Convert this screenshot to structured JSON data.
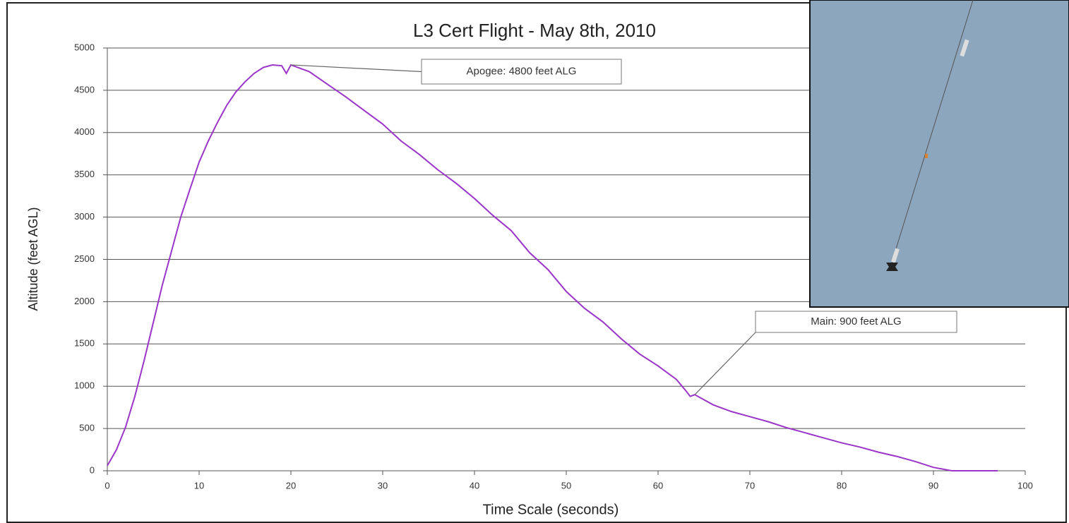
{
  "chart_data": {
    "type": "line",
    "title": "L3 Cert Flight - May 8th, 2010",
    "x_label": "Time Scale (seconds)",
    "y_label": "Altitude (feet AGL)",
    "x": [
      0,
      1,
      2,
      3,
      4,
      5,
      6,
      7,
      8,
      9,
      10,
      11,
      12,
      13,
      14,
      15,
      16,
      17,
      18,
      19,
      19.5,
      20,
      22,
      24,
      26,
      28,
      30,
      32,
      34,
      36,
      38,
      40,
      42,
      44,
      46,
      48,
      50,
      52,
      54,
      56,
      58,
      60,
      62,
      63,
      63.5,
      64,
      66,
      68,
      70,
      72,
      74,
      76,
      78,
      80,
      82,
      84,
      86,
      88,
      90,
      92,
      95,
      97
    ],
    "values": [
      60,
      250,
      520,
      880,
      1300,
      1750,
      2200,
      2600,
      3000,
      3330,
      3650,
      3900,
      4120,
      4320,
      4480,
      4600,
      4700,
      4770,
      4800,
      4790,
      4700,
      4800,
      4720,
      4570,
      4420,
      4260,
      4100,
      3900,
      3740,
      3560,
      3400,
      3220,
      3020,
      2840,
      2580,
      2380,
      2120,
      1920,
      1760,
      1560,
      1380,
      1240,
      1080,
      950,
      880,
      900,
      780,
      700,
      640,
      580,
      510,
      450,
      390,
      330,
      280,
      220,
      170,
      110,
      40,
      0,
      0,
      0
    ],
    "color": "#9b35c9",
    "xlim": [
      0,
      100
    ],
    "xticks": [
      0,
      10,
      20,
      30,
      40,
      50,
      60,
      70,
      80,
      90,
      100
    ],
    "ylim": [
      0,
      5000
    ],
    "yticks": [
      0,
      500,
      1000,
      1500,
      2000,
      2500,
      3000,
      3500,
      4000,
      4500,
      5000
    ],
    "grid": true,
    "annotations": [
      {
        "text": "Apogee: 4800 feet ALG",
        "x": 20,
        "y": 4800
      },
      {
        "text": "Main: 900 feet ALG",
        "x": 64,
        "y": 900
      }
    ]
  }
}
